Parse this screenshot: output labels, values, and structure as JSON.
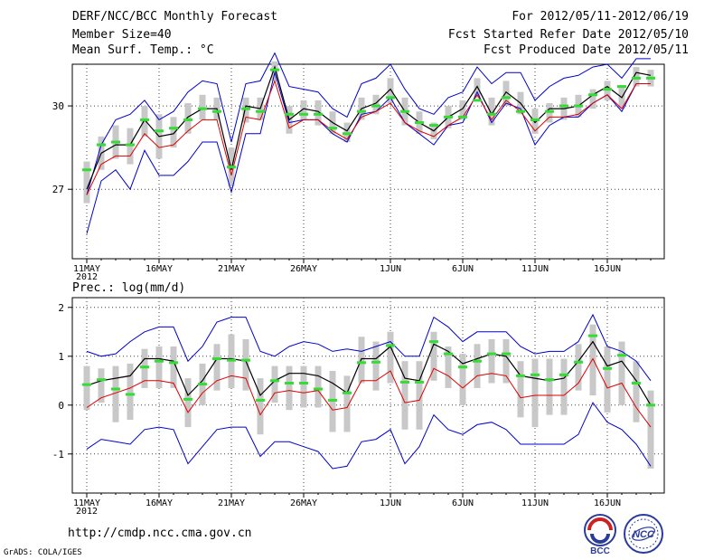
{
  "header": {
    "title": "DERF/NCC/BCC Monthly Forecast",
    "member_size": "Member Size=40",
    "forecast_period": "For 2012/05/11-2012/06/19",
    "started_refer": "Fcst Started Refer Date 2012/05/10",
    "produced_date": "Fcst Produced Date 2012/05/11"
  },
  "footer": {
    "url": "http://cmdp.ncc.cma.gov.cn",
    "grads_credit": "GrADS: COLA/IGES",
    "logo_bcc": "BCC",
    "logo_ncc": "NCC"
  },
  "colors": {
    "upper_bound": "#0000cc",
    "lower_bound": "#0000cc",
    "ensemble_mean": "#000000",
    "median": "#dd0000",
    "spread_box": "#c8c8c8",
    "observed_marker": "#33dd33",
    "grid": "#444444"
  },
  "chart_data": [
    {
      "type": "line",
      "title": "Mean Surf. Temp.: °C",
      "x_tick_labels": [
        "11MAY",
        "16MAY",
        "21MAY",
        "26MAY",
        "1JUN",
        "6JUN",
        "11JUN",
        "16JUN"
      ],
      "x_tick_days": [
        1,
        6,
        11,
        16,
        22,
        27,
        32,
        37
      ],
      "year_label": "2012",
      "ylim": [
        24.5,
        31.5
      ],
      "yticks": [
        27,
        30
      ],
      "x_days": [
        1,
        2,
        3,
        4,
        5,
        6,
        7,
        8,
        9,
        10,
        11,
        12,
        13,
        14,
        15,
        16,
        17,
        18,
        19,
        20,
        21,
        22,
        23,
        24,
        25,
        26,
        27,
        28,
        29,
        30,
        31,
        32,
        33,
        34,
        35,
        36,
        37,
        38,
        39,
        40
      ],
      "series": [
        {
          "name": "ensemble max",
          "values": [
            25.4,
            27.3,
            27.7,
            27.0,
            28.4,
            27.5,
            27.5,
            28.0,
            28.7,
            28.7,
            26.9,
            29.0,
            29.0,
            31.2,
            29.4,
            29.5,
            29.5,
            29.0,
            28.7,
            29.7,
            29.8,
            30.3,
            29.4,
            29.0,
            28.6,
            29.3,
            29.4,
            30.5,
            29.4,
            30.1,
            29.9,
            28.6,
            29.3,
            29.6,
            29.6,
            30.1,
            30.4,
            29.8,
            30.8,
            30.8
          ]
        },
        {
          "name": "ensemble min",
          "values": [
            26.8,
            28.6,
            29.5,
            29.7,
            30.2,
            29.5,
            29.8,
            30.5,
            30.9,
            30.8,
            28.7,
            30.8,
            30.9,
            31.9,
            30.7,
            30.6,
            30.5,
            29.9,
            29.6,
            30.8,
            31.0,
            31.5,
            30.6,
            29.9,
            29.7,
            30.3,
            30.5,
            31.4,
            30.8,
            31.2,
            31.2,
            30.2,
            30.7,
            31.0,
            31.1,
            31.4,
            31.5,
            31.0,
            31.7,
            31.7
          ]
        },
        {
          "name": "ensemble mean",
          "values": [
            27.0,
            28.3,
            28.6,
            28.6,
            29.5,
            28.9,
            29.0,
            29.6,
            29.9,
            29.9,
            27.7,
            30.0,
            29.9,
            31.4,
            29.5,
            29.9,
            29.8,
            29.4,
            29.1,
            29.9,
            30.1,
            30.6,
            29.8,
            29.4,
            29.1,
            29.6,
            29.9,
            30.7,
            29.7,
            30.5,
            30.1,
            29.4,
            29.9,
            29.9,
            30.0,
            30.4,
            30.7,
            30.3,
            31.2,
            31.1
          ]
        },
        {
          "name": "median",
          "values": [
            26.8,
            27.9,
            28.2,
            28.2,
            29.0,
            28.5,
            28.6,
            29.1,
            29.5,
            29.5,
            27.5,
            29.6,
            29.5,
            30.9,
            29.2,
            29.5,
            29.5,
            29.1,
            28.8,
            29.6,
            29.8,
            30.1,
            29.4,
            29.1,
            28.9,
            29.3,
            29.6,
            30.4,
            29.5,
            30.2,
            29.8,
            29.1,
            29.6,
            29.6,
            29.7,
            30.1,
            30.4,
            29.9,
            30.8,
            30.8
          ]
        },
        {
          "name": "box top",
          "values": [
            28.0,
            28.9,
            29.3,
            29.2,
            30.0,
            29.7,
            29.6,
            30.1,
            30.4,
            30.3,
            28.5,
            30.3,
            30.3,
            31.6,
            30.0,
            30.2,
            30.2,
            29.8,
            29.4,
            30.3,
            30.4,
            31.0,
            30.3,
            29.8,
            29.4,
            30.0,
            30.2,
            31.0,
            30.3,
            30.9,
            30.5,
            29.9,
            30.1,
            30.3,
            30.4,
            30.6,
            30.9,
            30.7,
            31.4,
            31.3
          ]
        },
        {
          "name": "box bottom",
          "values": [
            26.5,
            27.7,
            28.1,
            27.9,
            28.9,
            28.1,
            28.5,
            29.0,
            29.5,
            29.5,
            27.1,
            29.4,
            29.5,
            30.9,
            29.0,
            29.5,
            29.3,
            29.0,
            28.7,
            29.5,
            29.7,
            30.1,
            29.3,
            29.0,
            28.8,
            29.2,
            29.5,
            30.3,
            29.3,
            30.0,
            29.7,
            29.0,
            29.4,
            29.5,
            29.6,
            29.9,
            30.2,
            29.9,
            30.7,
            30.7
          ]
        },
        {
          "name": "observed",
          "values": [
            27.7,
            28.6,
            28.7,
            28.6,
            29.5,
            29.1,
            29.2,
            29.5,
            29.9,
            29.8,
            27.8,
            29.9,
            29.8,
            31.3,
            29.7,
            29.7,
            29.7,
            29.2,
            29.0,
            29.8,
            30.0,
            30.3,
            29.8,
            29.4,
            29.3,
            29.6,
            29.6,
            30.2,
            29.7,
            30.3,
            29.8,
            29.5,
            29.8,
            30.0,
            30.0,
            30.4,
            30.6,
            30.7,
            31.0,
            31.0
          ]
        }
      ]
    },
    {
      "type": "line",
      "title": "Prec.: log(mm/d)",
      "x_tick_labels": [
        "11MAY",
        "16MAY",
        "21MAY",
        "26MAY",
        "1JUN",
        "6JUN",
        "11JUN",
        "16JUN"
      ],
      "x_tick_days": [
        1,
        6,
        11,
        16,
        22,
        27,
        32,
        37
      ],
      "year_label": "2012",
      "ylim": [
        -1.8,
        2.2
      ],
      "yticks": [
        -1,
        0,
        1,
        2
      ],
      "x_days": [
        1,
        2,
        3,
        4,
        5,
        6,
        7,
        8,
        9,
        10,
        11,
        12,
        13,
        14,
        15,
        16,
        17,
        18,
        19,
        20,
        21,
        22,
        23,
        24,
        25,
        26,
        27,
        28,
        29,
        30,
        31,
        32,
        33,
        34,
        35,
        36,
        37,
        38,
        39,
        40
      ],
      "series": [
        {
          "name": "ensemble max",
          "values": [
            1.1,
            1.0,
            1.05,
            1.3,
            1.5,
            1.6,
            1.6,
            0.9,
            1.2,
            1.7,
            1.8,
            1.8,
            1.1,
            1.0,
            1.2,
            1.3,
            1.25,
            1.1,
            1.15,
            1.1,
            1.2,
            1.3,
            1.0,
            1.0,
            1.8,
            1.6,
            1.3,
            1.5,
            1.5,
            1.5,
            1.2,
            1.05,
            1.1,
            1.1,
            1.3,
            1.85,
            1.2,
            1.1,
            0.9,
            0.5
          ]
        },
        {
          "name": "ensemble min",
          "values": [
            -0.9,
            -0.7,
            -0.75,
            -0.8,
            -0.5,
            -0.45,
            -0.5,
            -1.2,
            -0.85,
            -0.5,
            -0.45,
            -0.45,
            -1.05,
            -0.75,
            -0.75,
            -0.85,
            -0.95,
            -1.3,
            -1.25,
            -0.75,
            -0.7,
            -0.5,
            -1.2,
            -0.85,
            -0.2,
            -0.5,
            -0.6,
            -0.4,
            -0.35,
            -0.5,
            -0.8,
            -0.8,
            -0.8,
            -0.8,
            -0.6,
            0.05,
            -0.35,
            -0.5,
            -0.8,
            -1.25
          ]
        },
        {
          "name": "ensemble mean",
          "values": [
            0.4,
            0.5,
            0.55,
            0.6,
            0.95,
            0.95,
            0.9,
            0.2,
            0.5,
            0.95,
            0.95,
            0.9,
            0.2,
            0.5,
            0.65,
            0.65,
            0.6,
            0.45,
            0.25,
            0.95,
            0.95,
            1.2,
            0.55,
            0.5,
            1.25,
            1.1,
            0.85,
            0.95,
            1.05,
            1.0,
            0.6,
            0.55,
            0.5,
            0.55,
            0.9,
            1.3,
            0.8,
            0.9,
            0.5,
            0.0
          ]
        },
        {
          "name": "median",
          "values": [
            -0.05,
            0.15,
            0.25,
            0.35,
            0.5,
            0.5,
            0.45,
            -0.15,
            0.25,
            0.5,
            0.6,
            0.55,
            -0.2,
            0.25,
            0.3,
            0.25,
            0.3,
            -0.1,
            -0.05,
            0.5,
            0.5,
            0.7,
            0.05,
            0.1,
            0.75,
            0.6,
            0.35,
            0.6,
            0.65,
            0.6,
            0.15,
            0.2,
            0.2,
            0.2,
            0.45,
            0.95,
            0.35,
            0.45,
            -0.05,
            -0.45
          ]
        },
        {
          "name": "box top",
          "values": [
            0.8,
            0.75,
            0.8,
            0.85,
            1.15,
            1.2,
            1.2,
            0.55,
            0.85,
            1.25,
            1.45,
            1.35,
            0.55,
            0.8,
            0.8,
            0.8,
            0.8,
            0.7,
            0.6,
            1.4,
            1.3,
            1.5,
            0.9,
            0.9,
            1.5,
            1.2,
            1.05,
            1.25,
            1.35,
            1.35,
            0.9,
            0.95,
            0.95,
            0.95,
            1.25,
            1.65,
            1.2,
            1.3,
            0.9,
            0.3
          ]
        },
        {
          "name": "box bottom",
          "values": [
            -0.1,
            0.05,
            -0.35,
            -0.3,
            0.35,
            0.35,
            0.35,
            -0.45,
            0.0,
            0.3,
            0.35,
            0.3,
            -0.6,
            0.05,
            -0.1,
            -0.05,
            -0.05,
            -0.55,
            -0.55,
            0.45,
            0.3,
            0.45,
            -0.5,
            -0.5,
            0.5,
            0.35,
            0.0,
            0.35,
            0.45,
            0.45,
            -0.25,
            -0.45,
            -0.2,
            -0.2,
            0.3,
            0.2,
            -0.15,
            0.0,
            -0.35,
            -1.3
          ]
        },
        {
          "name": "observed",
          "values": [
            0.42,
            0.52,
            0.33,
            0.22,
            0.78,
            0.9,
            0.87,
            0.12,
            0.43,
            0.95,
            0.92,
            0.92,
            0.1,
            0.5,
            0.45,
            0.45,
            0.33,
            0.1,
            0.25,
            0.87,
            0.88,
            1.22,
            0.47,
            0.47,
            1.3,
            1.05,
            0.78,
            0.9,
            1.05,
            1.05,
            0.6,
            0.62,
            0.52,
            0.62,
            0.88,
            1.42,
            0.75,
            1.02,
            0.45,
            0.0
          ]
        }
      ]
    }
  ]
}
